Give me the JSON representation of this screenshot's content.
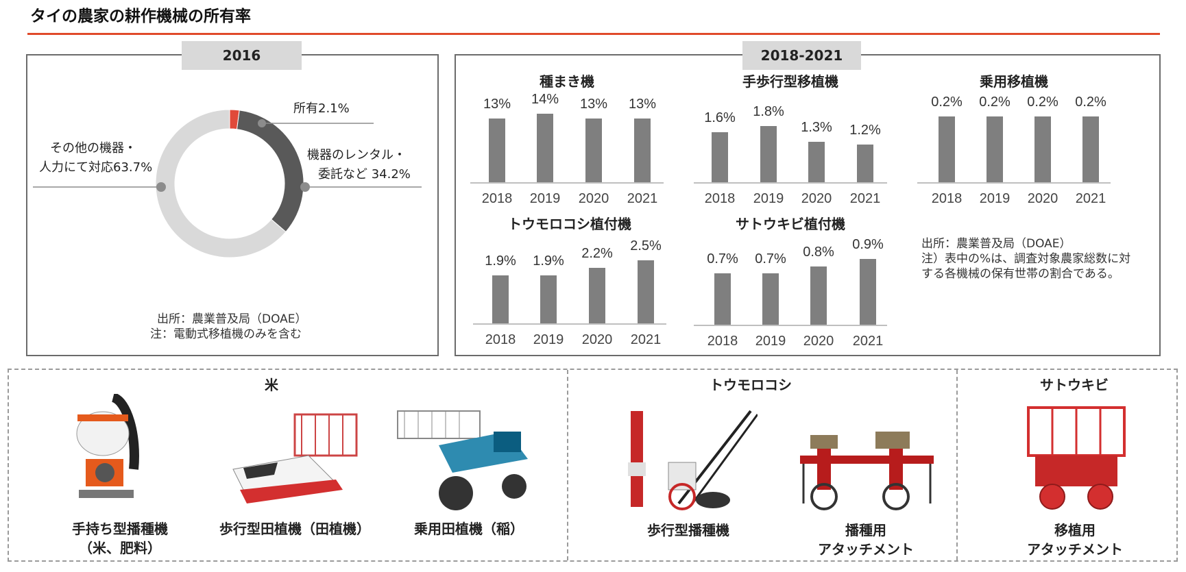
{
  "page": {
    "title": "タイの農家の耕作機械の所有率"
  },
  "left_panel": {
    "tab": "2016",
    "labels": {
      "own": "所有2.1%",
      "rental_line1": "機器のレンタル・",
      "rental_line2": "委託など 34.2%",
      "other_line1": "その他の機器・",
      "other_line2": "人力にて対応63.7%"
    },
    "note_line1": "出所：農業普及局（DOAE）",
    "note_line2": "注：電動式移植機のみを含む"
  },
  "right_panel": {
    "tab": "2018-2021",
    "note_line1": "出所：農業普及局（DOAE）",
    "note_line2": "注）表中の%は、調査対象農家総数に対",
    "note_line3": "する各機械の保有世帯の割合である。"
  },
  "chart_data": [
    {
      "type": "pie",
      "title": "2016",
      "slices": [
        {
          "label": "所有",
          "value": 2.1,
          "color": "#e04a3a"
        },
        {
          "label": "機器のレンタル・委託など",
          "value": 34.2,
          "color": "#595959"
        },
        {
          "label": "その他の機器・人力にて対応",
          "value": 63.7,
          "color": "#d9d9d9"
        }
      ]
    },
    {
      "type": "bar",
      "title": "種まき機",
      "categories": [
        "2018",
        "2019",
        "2020",
        "2021"
      ],
      "values": [
        13,
        14,
        13,
        13
      ],
      "labels": [
        "13%",
        "14%",
        "13%",
        "13%"
      ]
    },
    {
      "type": "bar",
      "title": "手歩行型移植機",
      "categories": [
        "2018",
        "2019",
        "2020",
        "2021"
      ],
      "values": [
        1.6,
        1.8,
        1.3,
        1.2
      ],
      "labels": [
        "1.6%",
        "1.8%",
        "1.3%",
        "1.2%"
      ]
    },
    {
      "type": "bar",
      "title": "乗用移植機",
      "categories": [
        "2018",
        "2019",
        "2020",
        "2021"
      ],
      "values": [
        0.2,
        0.2,
        0.2,
        0.2
      ],
      "labels": [
        "0.2%",
        "0.2%",
        "0.2%",
        "0.2%"
      ]
    },
    {
      "type": "bar",
      "title": "トウモロコシ植付機",
      "categories": [
        "2018",
        "2019",
        "2020",
        "2021"
      ],
      "values": [
        1.9,
        1.9,
        2.2,
        2.5
      ],
      "labels": [
        "1.9%",
        "1.9%",
        "2.2%",
        "2.5%"
      ]
    },
    {
      "type": "bar",
      "title": "サトウキビ植付機",
      "categories": [
        "2018",
        "2019",
        "2020",
        "2021"
      ],
      "values": [
        0.7,
        0.7,
        0.8,
        0.9
      ],
      "labels": [
        "0.7%",
        "0.7%",
        "0.8%",
        "0.9%"
      ]
    }
  ],
  "machines": {
    "rice_title": "米",
    "corn_title": "トウモロコシ",
    "sugar_title": "サトウキビ",
    "items": [
      {
        "line1": "手持ち型播種機",
        "line2": "（米、肥料）"
      },
      {
        "line1": "歩行型田植機（田植機）",
        "line2": ""
      },
      {
        "line1": "乗用田植機（稲）",
        "line2": ""
      },
      {
        "line1": "歩行型播種機",
        "line2": ""
      },
      {
        "line1": "播種用",
        "line2": "アタッチメント"
      },
      {
        "line1": "移植用",
        "line2": "アタッチメント"
      }
    ]
  }
}
